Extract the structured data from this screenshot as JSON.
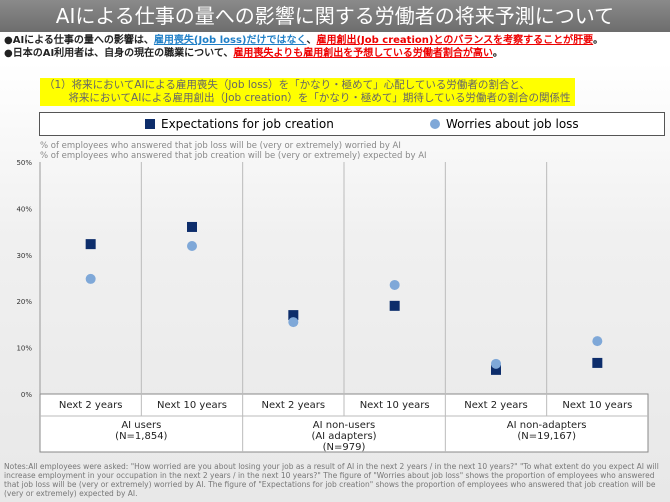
{
  "title": "AIによる仕事の量への影響に関する労働者の将来予測について",
  "bullets": {
    "b1_pre": "●AIによる仕事の量への影響は、",
    "b1_blue": "雇用喪失(Job loss)だけではなく",
    "b1_mid": "、",
    "b1_red": "雇用創出(Job creation)とのバランスを考察することが肝要",
    "b1_end": "。",
    "b2_pre": "●日本のAI利用者は、自身の現在の職業について、",
    "b2_red": "雇用喪失よりも雇用創出を予想している労働者割合が高い",
    "b2_end": "。"
  },
  "box": {
    "line1": "（1）将来においてAIによる雇用喪失（Job loss）を「かなり・極めて」心配している労働者の割合と、",
    "line2": "　　 将来においてAIによる雇用創出（Job creation）を「かなり・極めて」期待している労働者の割合の関係性"
  },
  "sublabels": {
    "l1": "% of employees who answered that job loss will be (very or extremely) worried by AI",
    "l2": "% of employees who answered that job creation will be (very or extremely) expected by AI"
  },
  "notes": "Notes:All employees were asked: \"How worried are you about losing your job as a result of AI in the next 2 years / in the next 10 years?\" \"To what extent do you expect AI will increase employment in your occupation in the next 2 years / in the next 10 years?\" The figure of \"Worries about job loss\" shows the proportion of employees who answered that job loss will be (very or extremely) worried by AI. The figure of \"Expectations for job creation\" shows the proportion of employees who answered that job creation will be (very or extremely) expected by AI.",
  "chart_data": {
    "type": "scatter",
    "categories": [
      "Next 2 years",
      "Next 10 years",
      "Next 2 years",
      "Next 10 years",
      "Next 2 years",
      "Next 10 years"
    ],
    "groups": [
      {
        "label": "AI users",
        "n": "(N=1,854)"
      },
      {
        "label": "AI non-users\n(AI adapters)",
        "l1": "AI non-users",
        "l2": "(AI adapters)",
        "n": "(N=979)"
      },
      {
        "label": "AI non-adapters",
        "n": "(N=19,167)"
      }
    ],
    "series": [
      {
        "name": "Expectations for job creation",
        "marker": "square",
        "color": "#0d2d6b",
        "values": [
          32.3,
          36.0,
          17.0,
          19.0,
          5.2,
          6.7
        ]
      },
      {
        "name": "Worries about job loss",
        "marker": "circle",
        "color": "#7fa8d8",
        "values": [
          24.8,
          31.9,
          15.5,
          23.5,
          6.5,
          11.4
        ]
      }
    ],
    "yticks": [
      "0%",
      "10%",
      "20%",
      "30%",
      "40%",
      "50%"
    ],
    "ylim": [
      0,
      50
    ],
    "grid": "vertical separators",
    "legend": "top"
  }
}
